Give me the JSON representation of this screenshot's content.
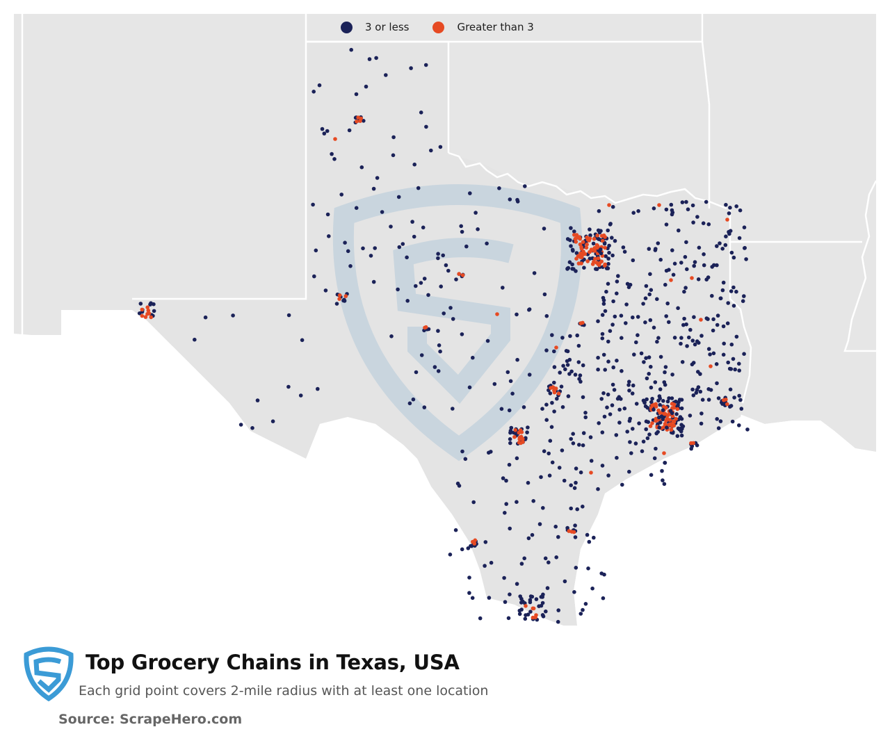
{
  "legend": {
    "items": [
      {
        "label": "3 or less",
        "color": "#1b2258"
      },
      {
        "label": "Greater than 3",
        "color": "#e64a23"
      }
    ]
  },
  "colors": {
    "background": "#ffffff",
    "land": "#e6e6e6",
    "state_border": "#ffffff",
    "low_density": "#1b2258",
    "high_density": "#e64a23",
    "watermark": "#a9c4d8",
    "logo": "#3b9bd6"
  },
  "header": {
    "title": "Top Grocery Chains in Texas, USA",
    "subtitle": "Each grid point covers 2-mile radius with at least one location",
    "source": "Source: ScrapeHero.com"
  },
  "icons": {
    "logo": "scrapehero-shield-icon",
    "watermark": "scrapehero-shield-watermark"
  }
}
